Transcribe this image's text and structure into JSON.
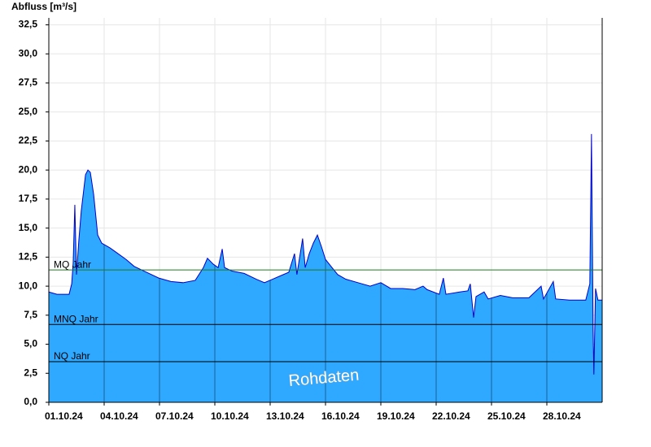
{
  "chart_data": {
    "type": "area",
    "y_label": "Abfluss [m³/s]",
    "x": [
      0.0,
      0.44,
      1.1,
      1.24,
      1.32,
      1.41,
      1.5,
      1.63,
      1.76,
      1.99,
      2.12,
      2.25,
      2.43,
      2.65,
      2.87,
      3.31,
      3.75,
      4.19,
      4.63,
      5.29,
      5.96,
      6.62,
      7.28,
      7.94,
      8.38,
      8.6,
      8.91,
      9.18,
      9.4,
      9.53,
      9.93,
      10.59,
      11.25,
      11.69,
      12.13,
      12.57,
      13.01,
      13.32,
      13.45,
      13.76,
      13.9,
      14.12,
      14.34,
      14.56,
      14.78,
      15.0,
      15.35,
      15.66,
      16.1,
      16.76,
      17.42,
      18.0,
      18.53,
      19.19,
      19.85,
      20.29,
      20.51,
      21.17,
      21.39,
      21.53,
      22.28,
      22.72,
      22.85,
      23.03,
      23.16,
      23.6,
      23.82,
      24.48,
      25.14,
      26.03,
      26.69,
      26.82,
      27.35,
      27.48,
      28.23,
      29.11,
      29.33,
      29.42,
      29.51,
      29.55,
      29.64,
      29.77,
      30.0
    ],
    "series": [
      {
        "color": "#0000cc",
        "fill": "#2fa8ff",
        "values": [
          9.5,
          9.3,
          9.3,
          10.2,
          12.0,
          17.0,
          11.0,
          14.0,
          16.5,
          19.6,
          20.0,
          19.8,
          17.9,
          14.4,
          13.7,
          13.3,
          12.8,
          12.3,
          11.7,
          11.2,
          10.7,
          10.4,
          10.3,
          10.5,
          11.6,
          12.4,
          11.9,
          11.6,
          13.2,
          11.6,
          11.3,
          11.1,
          10.6,
          10.3,
          10.6,
          10.9,
          11.2,
          12.8,
          11.0,
          14.1,
          11.6,
          12.8,
          13.7,
          14.4,
          13.4,
          12.3,
          11.6,
          11.0,
          10.6,
          10.3,
          10.0,
          10.3,
          9.8,
          9.8,
          9.7,
          10.0,
          9.7,
          9.3,
          10.7,
          9.3,
          9.5,
          9.6,
          10.2,
          7.3,
          9.1,
          9.5,
          8.9,
          9.2,
          9.0,
          9.0,
          10.0,
          8.9,
          10.4,
          8.9,
          8.8,
          8.8,
          10.2,
          23.1,
          6.1,
          2.4,
          9.8,
          8.8,
          8.8
        ]
      }
    ],
    "reference_lines": [
      {
        "name": "MQ Jahr",
        "value": 11.4,
        "color": "#1e7a1e"
      },
      {
        "name": "MNQ Jahr",
        "value": 6.7,
        "color": "#000000"
      },
      {
        "name": "NQ Jahr",
        "value": 3.5,
        "color": "#000000"
      }
    ],
    "annotation": "Rohdaten",
    "xlim": [
      0,
      30
    ],
    "xticks": [
      {
        "value": 0,
        "label": "01.10.24"
      },
      {
        "value": 3,
        "label": "04.10.24"
      },
      {
        "value": 6,
        "label": "07.10.24"
      },
      {
        "value": 9,
        "label": "10.10.24"
      },
      {
        "value": 12,
        "label": "13.10.24"
      },
      {
        "value": 15,
        "label": "16.10.24"
      },
      {
        "value": 18,
        "label": "19.10.24"
      },
      {
        "value": 21,
        "label": "22.10.24"
      },
      {
        "value": 24,
        "label": "25.10.24"
      },
      {
        "value": 27,
        "label": "28.10.24"
      }
    ],
    "ylim": [
      0,
      33.1
    ],
    "yticks": [
      {
        "value": 0,
        "label": "0,0"
      },
      {
        "value": 2.5,
        "label": "2,5"
      },
      {
        "value": 5,
        "label": "5,0"
      },
      {
        "value": 7.5,
        "label": "7,5"
      },
      {
        "value": 10,
        "label": "10,0"
      },
      {
        "value": 12.5,
        "label": "12,5"
      },
      {
        "value": 15,
        "label": "15,0"
      },
      {
        "value": 17.5,
        "label": "17,5"
      },
      {
        "value": 20,
        "label": "20,0"
      },
      {
        "value": 22.5,
        "label": "22,5"
      },
      {
        "value": 25,
        "label": "25,0"
      },
      {
        "value": 27.5,
        "label": "27,5"
      },
      {
        "value": 30,
        "label": "30,0"
      },
      {
        "value": 32.5,
        "label": "32,5"
      }
    ],
    "grid": true
  }
}
